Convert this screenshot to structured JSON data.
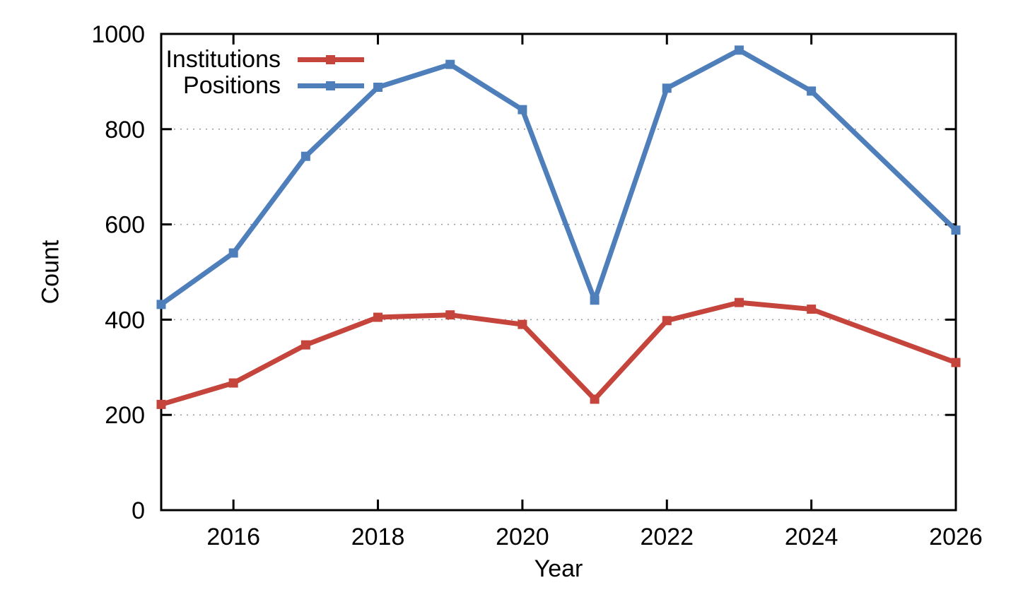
{
  "chart_data": {
    "type": "line",
    "title": "",
    "xlabel": "Year",
    "ylabel": "Count",
    "xlim": [
      2015,
      2026
    ],
    "ylim": [
      0,
      1000
    ],
    "x_ticks": [
      2016,
      2018,
      2020,
      2022,
      2024,
      2026
    ],
    "y_ticks": [
      0,
      200,
      400,
      600,
      800,
      1000
    ],
    "grid": "horizontal dotted gridlines at 200/400/600/800",
    "legend_position": "top-left inside plot, labels left of line samples",
    "series": [
      {
        "name": "Institutions",
        "color": "#c5443b",
        "marker": "filled-square",
        "x": [
          2015,
          2016,
          2017,
          2018,
          2019,
          2020,
          2021,
          2022,
          2023,
          2024,
          2026
        ],
        "values": [
          222,
          267,
          347,
          405,
          410,
          390,
          233,
          398,
          436,
          422,
          310
        ]
      },
      {
        "name": "Positions",
        "color": "#4e7fba",
        "marker": "filled-square",
        "x": [
          2015,
          2016,
          2017,
          2018,
          2019,
          2020,
          2021,
          2022,
          2023,
          2024,
          2026
        ],
        "values": [
          432,
          540,
          743,
          888,
          936,
          841,
          441,
          886,
          966,
          880,
          588
        ]
      }
    ]
  },
  "colors": {
    "background": "#ffffff",
    "axis": "#000000",
    "grid": "#9a9a9a",
    "institutions_red": "#c5443b",
    "positions_blue": "#4e7fba"
  }
}
